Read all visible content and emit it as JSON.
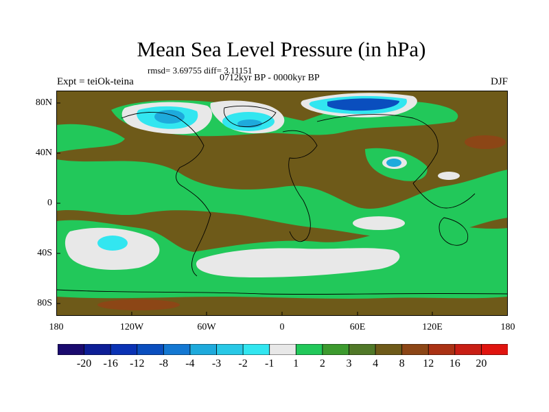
{
  "title": "Mean Sea Level Pressure (in hPa)",
  "stats_line": "rmsd= 3.69755 diff= 3.11151",
  "period": "0712kyr BP - 0000kyr BP",
  "experiment": "Expt = teiOk-teina",
  "season": "DJF",
  "lat_labels": [
    "80N",
    "40N",
    "0",
    "40S",
    "80S"
  ],
  "lon_labels": [
    "180",
    "120W",
    "60W",
    "0",
    "60E",
    "120E",
    "180"
  ],
  "colorbar": {
    "labels": [
      "-20",
      "-16",
      "-12",
      "-8",
      "-4",
      "-3",
      "-2",
      "-1",
      "1",
      "2",
      "3",
      "4",
      "8",
      "12",
      "16",
      "20"
    ],
    "colors": [
      "#1a0a6e",
      "#0d1e96",
      "#0a32b4",
      "#0a4ebe",
      "#1478d2",
      "#1eaadc",
      "#28c8e6",
      "#32e6f0",
      "#e8e8e8",
      "#22c85a",
      "#3c9a2e",
      "#507828",
      "#6e5a19",
      "#8c4616",
      "#aa3214",
      "#c81e14",
      "#e0140f"
    ]
  },
  "field_colors": {
    "background": "#6e5a19",
    "land_high": "#507828",
    "mid": "#3c9a2e",
    "green": "#22c85a",
    "neutral": "#e8e8e8",
    "light_blue": "#32e6f0",
    "blue": "#1eaadc",
    "deep_blue": "#0a4ebe",
    "high": "#8c4616"
  }
}
